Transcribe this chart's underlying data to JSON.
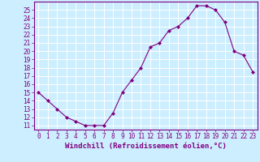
{
  "x": [
    0,
    1,
    2,
    3,
    4,
    5,
    6,
    7,
    8,
    9,
    10,
    11,
    12,
    13,
    14,
    15,
    16,
    17,
    18,
    19,
    20,
    21,
    22,
    23
  ],
  "y": [
    15,
    14,
    13,
    12,
    11.5,
    11,
    11,
    11,
    12.5,
    15,
    16.5,
    18,
    20.5,
    21,
    22.5,
    23,
    24,
    25.5,
    25.5,
    25,
    23.5,
    20,
    19.5,
    17.5
  ],
  "line_color": "#800080",
  "marker": "D",
  "marker_size": 2,
  "xlim": [
    -0.5,
    23.5
  ],
  "ylim": [
    10.5,
    26.0
  ],
  "yticks": [
    11,
    12,
    13,
    14,
    15,
    16,
    17,
    18,
    19,
    20,
    21,
    22,
    23,
    24,
    25
  ],
  "xticks": [
    0,
    1,
    2,
    3,
    4,
    5,
    6,
    7,
    8,
    9,
    10,
    11,
    12,
    13,
    14,
    15,
    16,
    17,
    18,
    19,
    20,
    21,
    22,
    23
  ],
  "bg_color": "#cceeff",
  "grid_color": "#ffffff",
  "tick_label_color": "#800080",
  "tick_label_size": 5.5,
  "xlabel": "Windchill (Refroidissement éolien,°C)",
  "xlabel_size": 6.5
}
